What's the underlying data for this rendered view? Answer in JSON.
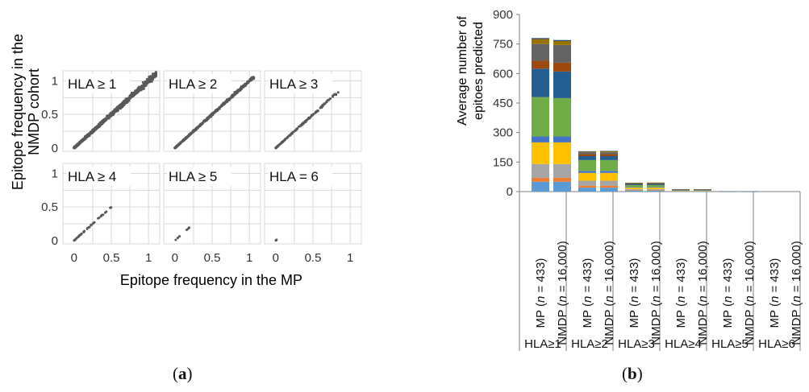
{
  "panel_a": {
    "label": "a",
    "xlabel": "Epitope frequency in the MP",
    "ylabel_line1": "Epitope frequency in the",
    "ylabel_line2": "NMDP cohort"
  },
  "panel_b": {
    "label": "b",
    "ylabel_line1": "Average number of",
    "ylabel_line2": "epitoes predicted"
  },
  "chart_data": [
    {
      "type": "scatter",
      "panels": [
        {
          "title": "HLA ≥ 1",
          "max": 1.12,
          "points": 1200,
          "spread": 0.1
        },
        {
          "title": "HLA ≥ 2",
          "max": 1.05,
          "points": 600,
          "spread": 0.06
        },
        {
          "title": "HLA ≥ 3",
          "max": 0.85,
          "points": 150,
          "spread": 0.05
        },
        {
          "title": "HLA ≥ 4",
          "max": 0.5,
          "points": 40,
          "spread": 0.04
        },
        {
          "title": "HLA ≥ 5",
          "max": 0.2,
          "points": 10,
          "spread": 0.02
        },
        {
          "title": "HLA = 6",
          "max": 0.02,
          "points": 4,
          "spread": 0.01
        }
      ],
      "xticks": [
        "0",
        "0.5",
        "1"
      ],
      "yticks": [
        "0",
        "0.5",
        "1"
      ],
      "xlim": [
        -0.15,
        1.15
      ],
      "ylim": [
        -0.05,
        1.15
      ],
      "grid": true,
      "point_color": "#595959",
      "xlabel": "Epitope frequency in the MP",
      "ylabel": "Epitope frequency in the NMDP cohort"
    },
    {
      "type": "bar",
      "stacked": true,
      "ylim": [
        0,
        900
      ],
      "yticks": [
        0,
        150,
        300,
        450,
        600,
        750,
        900
      ],
      "ylabel": "Average number of epitoes predicted",
      "groups": [
        "HLA≥1",
        "HLA≥2",
        "HLA≥3",
        "HLA≥4",
        "HLA≥5",
        "HLA≥6"
      ],
      "bar_label_parts": {
        "mp_name": "MP (",
        "mp_n": "n",
        "mp_val": " = 433)",
        "nmdp_name": "NMDP (",
        "nmdp_n": "n",
        "nmdp_val": " = 16,000)"
      },
      "series_colors": [
        "#5b9bd5",
        "#ed7d31",
        "#a5a5a5",
        "#ffc000",
        "#4472c4",
        "#70ad47",
        "#255e91",
        "#9e480e",
        "#636363",
        "#997300",
        "#264478"
      ],
      "stacks": [
        [
          [
            50,
            20,
            70,
            110,
            30,
            200,
            145,
            40,
            85,
            25,
            5
          ],
          [
            50,
            20,
            70,
            110,
            30,
            195,
            135,
            45,
            90,
            20,
            5
          ]
        ],
        [
          [
            20,
            10,
            25,
            40,
            10,
            55,
            20,
            10,
            10,
            4,
            1
          ],
          [
            20,
            10,
            25,
            40,
            10,
            55,
            20,
            10,
            10,
            5,
            2
          ]
        ],
        [
          [
            4,
            2,
            6,
            8,
            3,
            10,
            6,
            2,
            3,
            1,
            0
          ],
          [
            4,
            2,
            6,
            8,
            3,
            10,
            6,
            2,
            4,
            1,
            0
          ]
        ],
        [
          [
            1,
            1,
            1,
            2,
            1,
            2,
            2,
            1,
            1,
            0,
            0
          ],
          [
            1,
            1,
            1,
            2,
            1,
            2,
            2,
            1,
            1,
            0,
            0
          ]
        ],
        [
          [
            0,
            0,
            0,
            0,
            0,
            0,
            1,
            0,
            0,
            0,
            0
          ],
          [
            0,
            0,
            0,
            0,
            0,
            0,
            1,
            0,
            0,
            0,
            0
          ]
        ],
        [
          [
            0,
            0,
            0,
            0,
            0,
            0,
            0,
            0,
            0,
            0,
            0
          ],
          [
            0,
            0,
            0,
            0,
            0,
            0,
            0,
            0,
            0,
            0,
            0
          ]
        ]
      ]
    }
  ]
}
